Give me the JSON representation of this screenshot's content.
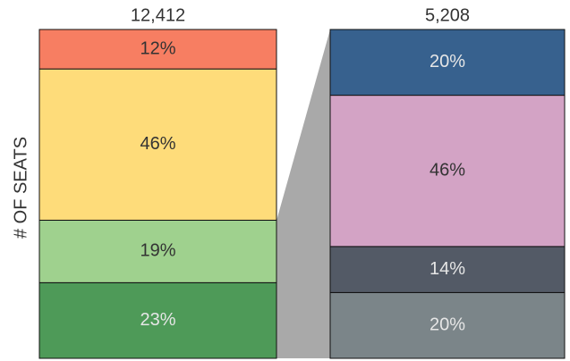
{
  "chart_data": {
    "type": "bar",
    "stacked": true,
    "ylabel": "# OF SEATS",
    "ylim": [
      0,
      100
    ],
    "bars": [
      {
        "total": 12412,
        "total_label": "12,412",
        "values": [
          23,
          19,
          46,
          12
        ],
        "value_labels": [
          "23%",
          "19%",
          "46%",
          "12%"
        ],
        "colors": [
          "#4e9a58",
          "#9fd18e",
          "#fedc7a",
          "#f77e62"
        ]
      },
      {
        "total": 5208,
        "total_label": "5,208",
        "values": [
          20,
          14,
          46,
          20
        ],
        "value_labels": [
          "20%",
          "14%",
          "46%",
          "20%"
        ],
        "colors": [
          "#7b8589",
          "#535a66",
          "#d3a3c5",
          "#37618e"
        ]
      }
    ]
  }
}
